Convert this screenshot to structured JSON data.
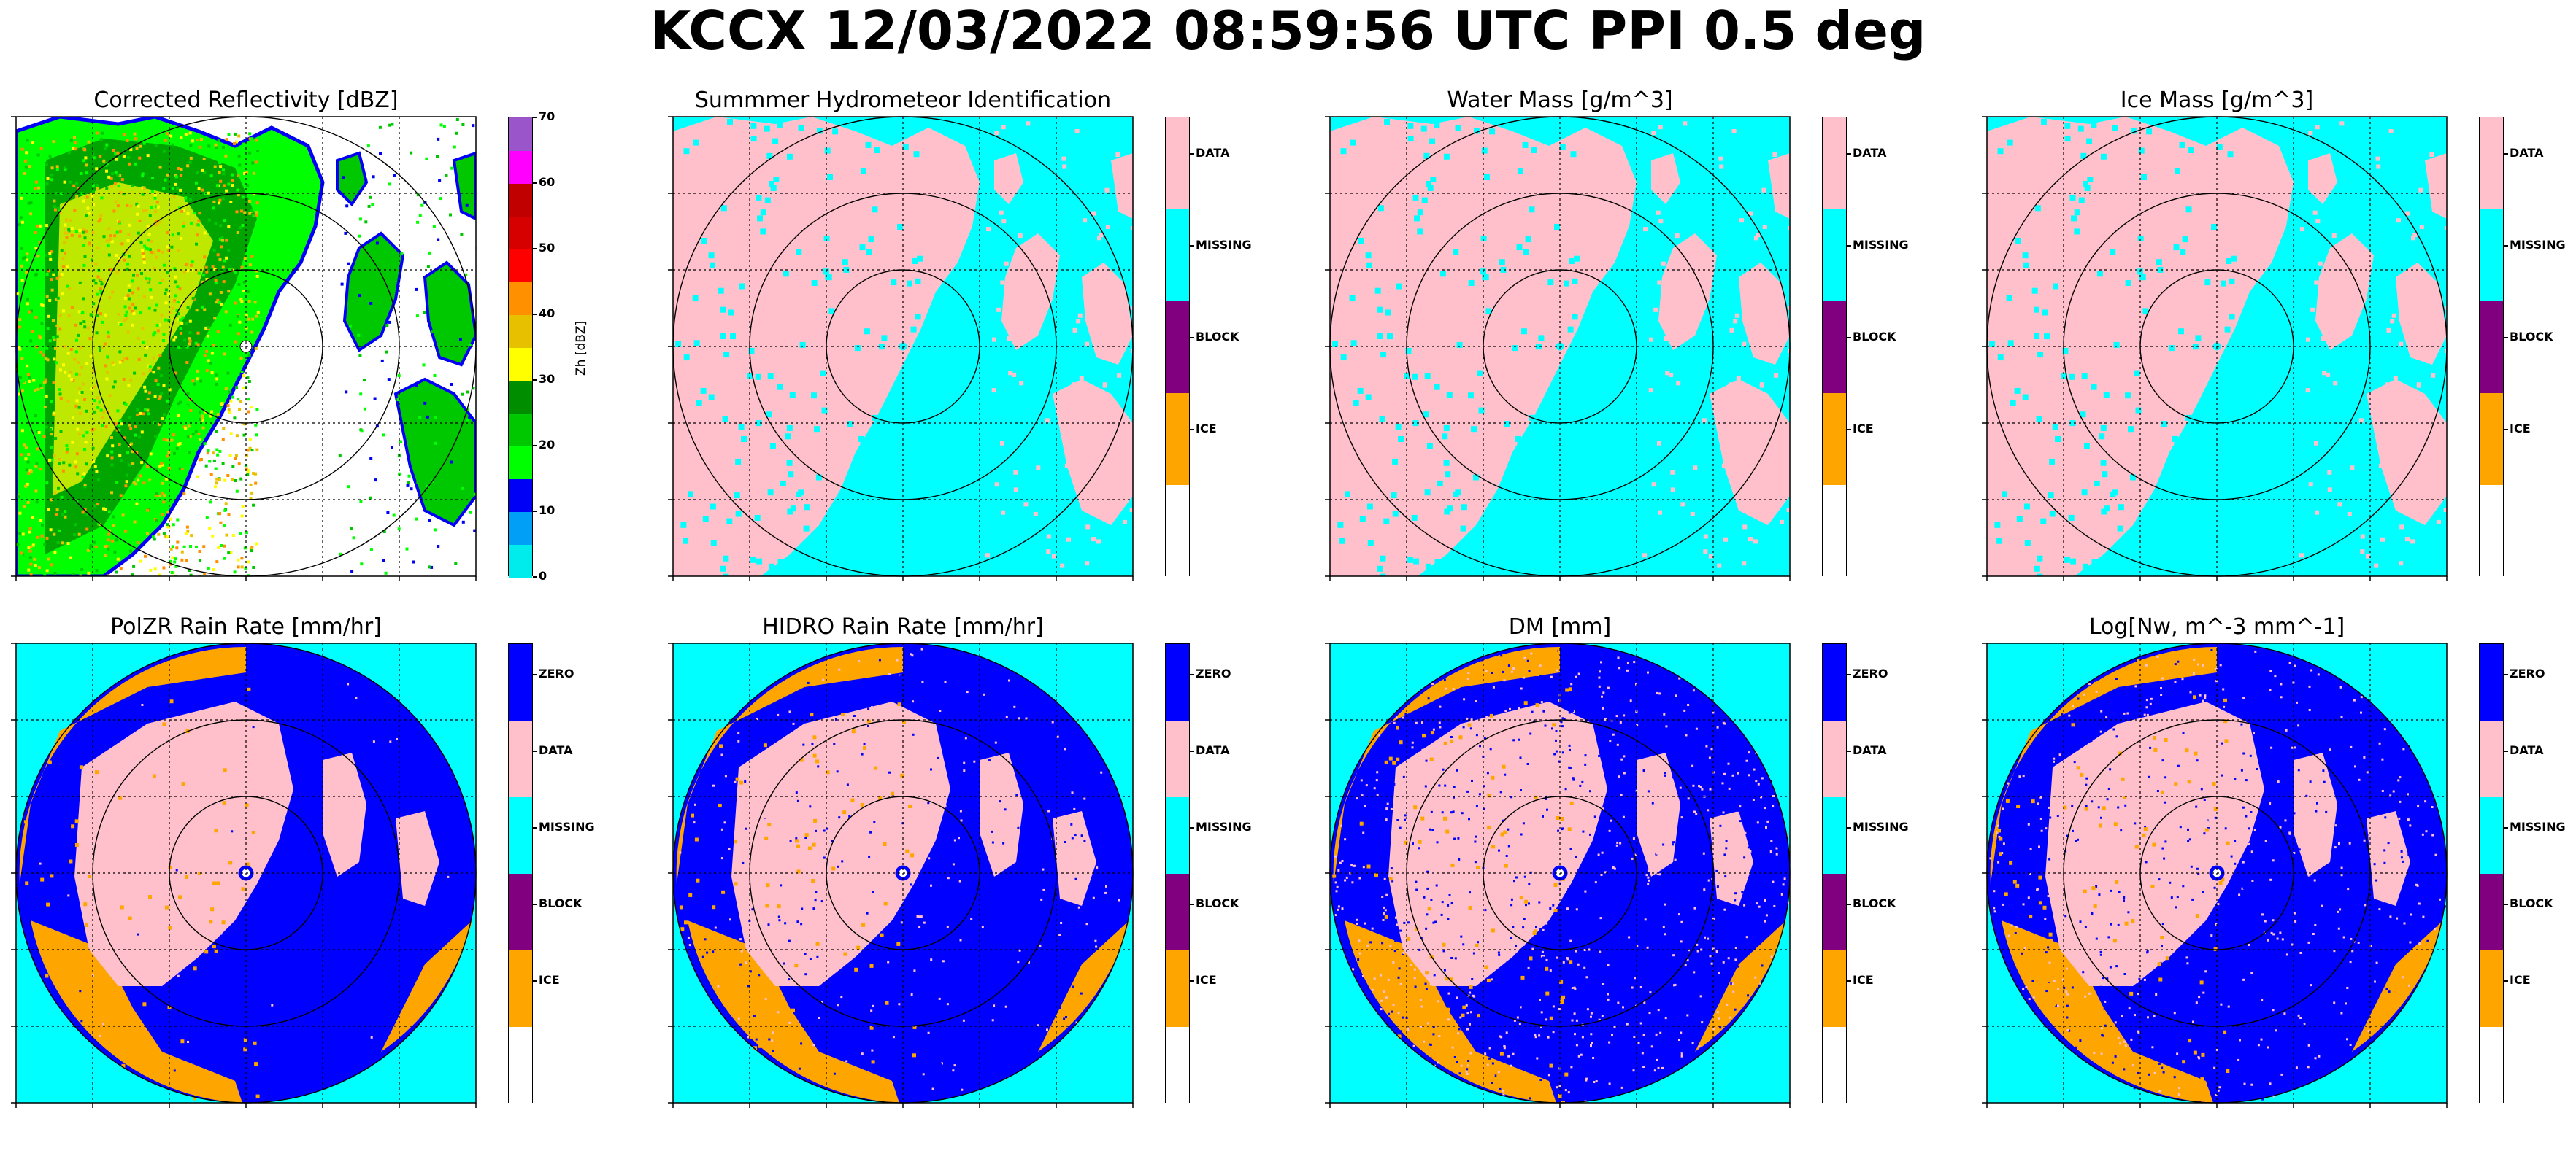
{
  "suptitle": "KCCX 12/03/2022 08:59:56 UTC PPI 0.5 deg",
  "colors": {
    "cyan": "#00ffff",
    "pink": "#ffc0cb",
    "purple": "#800080",
    "orange": "#ffa500",
    "blue": "#0000ff",
    "white": "#ffffff"
  },
  "reflectivity_colorbar": {
    "axis_label": "Zh [dBZ]",
    "ticks": [
      "0",
      "10",
      "20",
      "30",
      "40",
      "50",
      "60",
      "70"
    ],
    "bins": [
      {
        "from": 0,
        "to": 5,
        "color": "#00ecec"
      },
      {
        "from": 5,
        "to": 10,
        "color": "#01a0f6"
      },
      {
        "from": 10,
        "to": 15,
        "color": "#0000f6"
      },
      {
        "from": 15,
        "to": 20,
        "color": "#00ff00"
      },
      {
        "from": 20,
        "to": 25,
        "color": "#00c800"
      },
      {
        "from": 25,
        "to": 30,
        "color": "#008e00"
      },
      {
        "from": 30,
        "to": 35,
        "color": "#ffff00"
      },
      {
        "from": 35,
        "to": 40,
        "color": "#e7c000"
      },
      {
        "from": 40,
        "to": 45,
        "color": "#ff9000"
      },
      {
        "from": 45,
        "to": 50,
        "color": "#ff0000"
      },
      {
        "from": 50,
        "to": 55,
        "color": "#d60000"
      },
      {
        "from": 55,
        "to": 60,
        "color": "#c00000"
      },
      {
        "from": 60,
        "to": 65,
        "color": "#ff00ff"
      },
      {
        "from": 65,
        "to": 70,
        "color": "#9955c9"
      }
    ]
  },
  "class_colorbar_4": [
    {
      "label": "DATA",
      "color": "#ffc0cb"
    },
    {
      "label": "MISSING",
      "color": "#00ffff"
    },
    {
      "label": "BLOCK",
      "color": "#800080"
    },
    {
      "label": "ICE",
      "color": "#ffa500"
    },
    {
      "label": "",
      "color": "#ffffff"
    }
  ],
  "class_colorbar_5": [
    {
      "label": "ZERO",
      "color": "#0000ff"
    },
    {
      "label": "DATA",
      "color": "#ffc0cb"
    },
    {
      "label": "MISSING",
      "color": "#00ffff"
    },
    {
      "label": "BLOCK",
      "color": "#800080"
    },
    {
      "label": "ICE",
      "color": "#ffa500"
    },
    {
      "label": "",
      "color": "#ffffff"
    }
  ],
  "panels": [
    {
      "title": "Corrected Reflectivity [dBZ]",
      "kind": "reflectivity"
    },
    {
      "title": "Summmer Hydrometeor Identification",
      "kind": "class4"
    },
    {
      "title": "Water Mass [g/m^3]",
      "kind": "class4"
    },
    {
      "title": "Ice Mass [g/m^3]",
      "kind": "class4"
    },
    {
      "title": "PolZR Rain Rate [mm/hr]",
      "kind": "class5"
    },
    {
      "title": "HIDRO Rain Rate [mm/hr]",
      "kind": "class5"
    },
    {
      "title": "DM [mm]",
      "kind": "class5"
    },
    {
      "title": "Log[Nw, m^-3 mm^-1]",
      "kind": "class5"
    }
  ],
  "chart_data": {
    "type": "heatmap",
    "title": "KCCX 12/03/2022 08:59:56 UTC PPI 0.5 deg",
    "subplots": [
      "Corrected Reflectivity [dBZ]",
      "Summmer Hydrometeor Identification",
      "Water Mass [g/m^3]",
      "Ice Mass [g/m^3]",
      "PolZR Rain Rate [mm/hr]",
      "HIDRO Rain Rate [mm/hr]",
      "DM [mm]",
      "Log[Nw, m^-3 mm^-1]"
    ],
    "reflectivity_range_dbz": [
      0,
      70
    ],
    "range_rings": 3,
    "grid": true
  }
}
